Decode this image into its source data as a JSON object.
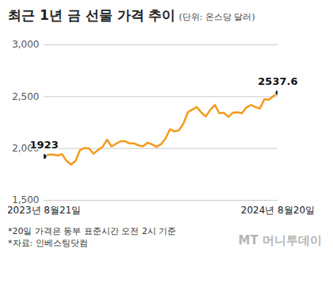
{
  "chart_data": {
    "type": "line",
    "title": "최근 1년 금 선물 가격 추이",
    "subtitle": "(단위: 온스당 달러)",
    "notes": [
      "*20일 가격은 동부 표준시간 오전 2시 기준",
      "*자료: 인베스팅닷컴"
    ],
    "credit": "MT 머니투데이",
    "categories": [
      "2023년 8월21일",
      null,
      null,
      null,
      null,
      null,
      null,
      null,
      null,
      null,
      null,
      null,
      null,
      null,
      null,
      null,
      null,
      null,
      null,
      null,
      null,
      null,
      null,
      null,
      null,
      null,
      null,
      null,
      null,
      null,
      null,
      null,
      null,
      null,
      null,
      null,
      null,
      null,
      null,
      null,
      null,
      null,
      null,
      null,
      null,
      null,
      null,
      null,
      null,
      null,
      null,
      null,
      "2024년 8월20일"
    ],
    "values": [
      1923,
      1940,
      1942,
      1932,
      1945,
      1880,
      1845,
      1880,
      1985,
      2005,
      2000,
      1950,
      1985,
      2015,
      2085,
      2020,
      2045,
      2070,
      2070,
      2050,
      2050,
      2030,
      2020,
      2055,
      2040,
      2015,
      2040,
      2095,
      2185,
      2165,
      2175,
      2240,
      2350,
      2375,
      2400,
      2345,
      2310,
      2375,
      2420,
      2340,
      2345,
      2305,
      2345,
      2350,
      2340,
      2395,
      2420,
      2400,
      2385,
      2475,
      2470,
      2505,
      2537.6
    ],
    "value_labels": [
      "1923",
      null,
      null,
      null,
      null,
      null,
      null,
      null,
      null,
      null,
      null,
      null,
      null,
      null,
      null,
      null,
      null,
      null,
      null,
      null,
      null,
      null,
      null,
      null,
      null,
      null,
      null,
      null,
      null,
      null,
      null,
      null,
      null,
      null,
      null,
      null,
      null,
      null,
      null,
      null,
      null,
      null,
      null,
      null,
      null,
      null,
      null,
      null,
      null,
      null,
      null,
      null,
      "2537.6"
    ],
    "color": "#f39a1e",
    "ylim": [
      1500,
      3000
    ],
    "yticks": [
      1500,
      2000,
      2500,
      3000
    ],
    "grid": true
  }
}
